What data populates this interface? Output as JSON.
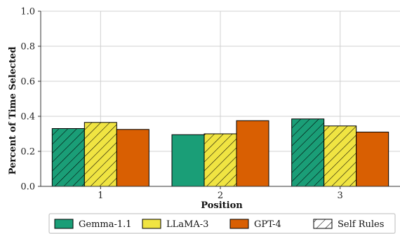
{
  "chart_data": {
    "type": "bar",
    "title": "",
    "xlabel": "Position",
    "ylabel": "Percent of Time Selected",
    "categories": [
      "1",
      "2",
      "3"
    ],
    "series": [
      {
        "name": "Gemma-1.1",
        "values": [
          0.33,
          0.295,
          0.385
        ],
        "hatched": [
          true,
          false,
          true
        ],
        "color": "#1a9e77"
      },
      {
        "name": "LLaMA-3",
        "values": [
          0.365,
          0.3,
          0.345
        ],
        "hatched": [
          true,
          true,
          true
        ],
        "color": "#f0e442"
      },
      {
        "name": "GPT-4",
        "values": [
          0.325,
          0.375,
          0.31
        ],
        "hatched": [
          false,
          false,
          false
        ],
        "color": "#d95f02"
      }
    ],
    "ylim": [
      0,
      1.0
    ],
    "yticks": [
      "0.0",
      "0.2",
      "0.4",
      "0.6",
      "0.8",
      "1.0"
    ],
    "grid": true,
    "legend_position": "bottom",
    "legend_extra": {
      "name": "Self Rules",
      "style": "hatch"
    }
  }
}
